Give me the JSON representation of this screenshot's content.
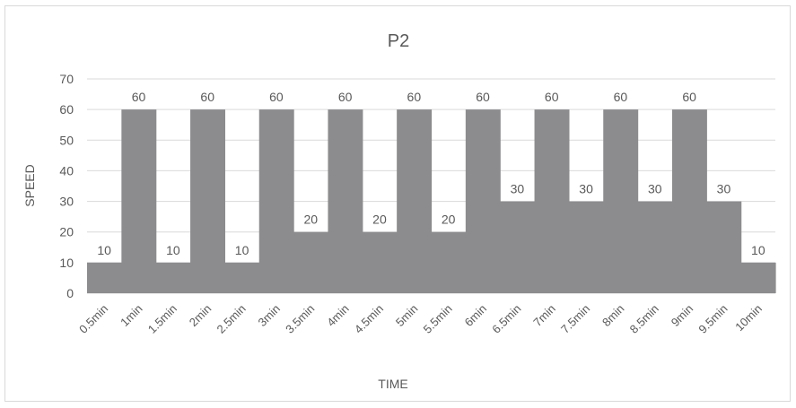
{
  "chart_data": {
    "type": "area",
    "title": "P2",
    "xlabel": "TIME",
    "ylabel": "SPEED",
    "ylim": [
      0,
      70
    ],
    "yticks": [
      0,
      10,
      20,
      30,
      40,
      50,
      60,
      70
    ],
    "categories": [
      "0.5min",
      "1min",
      "1.5min",
      "2min",
      "2.5min",
      "3min",
      "3.5min",
      "4min",
      "4.5min",
      "5min",
      "5.5min",
      "6min",
      "6.5min",
      "7min",
      "7.5min",
      "8min",
      "8.5min",
      "9min",
      "9.5min",
      "10min"
    ],
    "values": [
      10,
      60,
      10,
      60,
      10,
      60,
      20,
      60,
      20,
      60,
      20,
      60,
      30,
      60,
      30,
      60,
      30,
      60,
      30,
      10
    ],
    "data_labels": [
      "10",
      "60",
      "10",
      "60",
      "10",
      "60",
      "20",
      "60",
      "20",
      "60",
      "20",
      "60",
      "30",
      "60",
      "30",
      "60",
      "30",
      "60",
      "30",
      "10"
    ],
    "grid": true,
    "legend": "none",
    "colors": {
      "fill": "#8c8c8e",
      "grid": "#d9d9d9",
      "text": "#595959"
    }
  }
}
